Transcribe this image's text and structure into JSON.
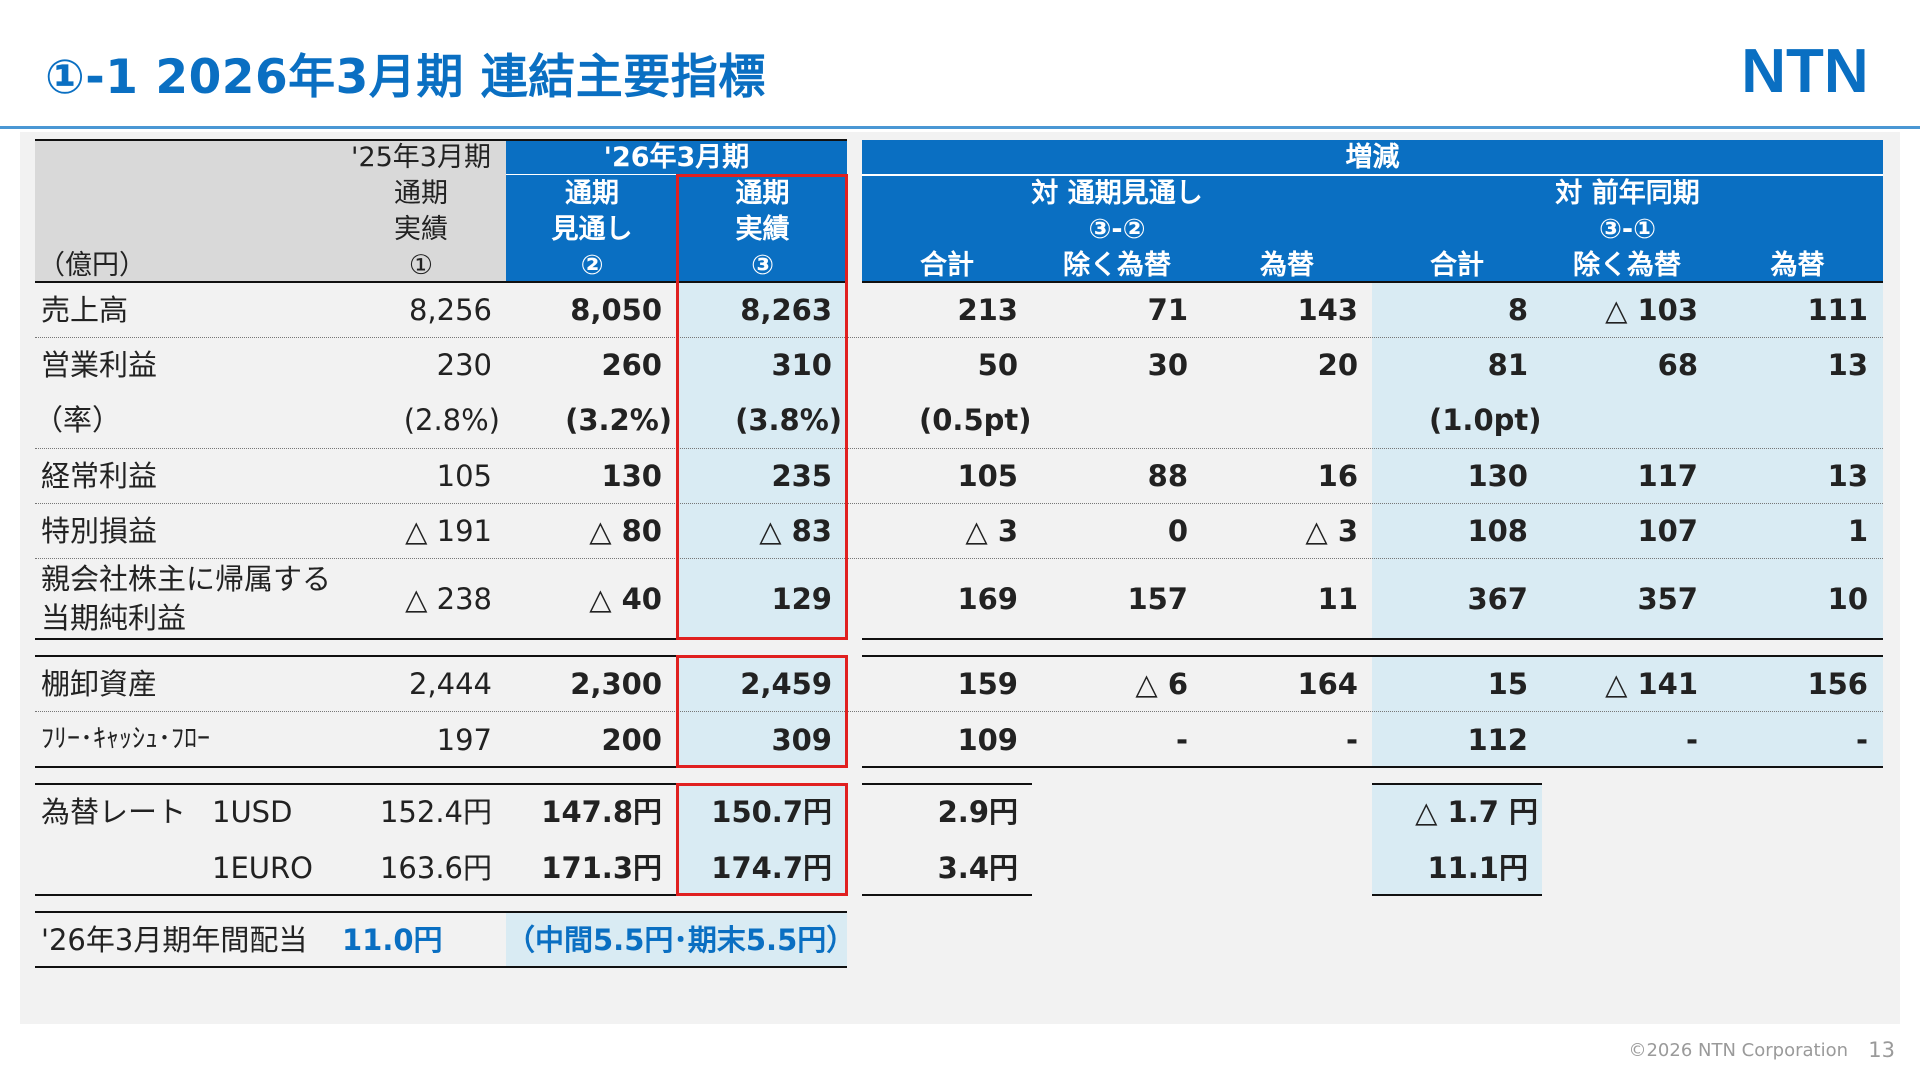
{
  "header": {
    "title": "①-1 2026年3月期 連結主要指標",
    "logo_text": "NTN"
  },
  "footer": {
    "copyright": "©2026 NTN Corporation",
    "page": "13"
  },
  "colors": {
    "brand_blue": "#0a6fc2",
    "header_blue": "#0a6fc2",
    "light_blue": "#d9ebf3",
    "header_gray": "#d9d9d9",
    "highlight_red": "#e02020"
  },
  "table": {
    "unit": "（億円）",
    "col_fy25": {
      "line1": "'25年3月期",
      "line2": "通期",
      "line3": "実績",
      "line4": "①"
    },
    "col_fy26": {
      "group": "'26年3月期",
      "forecast": {
        "line1": "通期",
        "line2": "見通し",
        "line3": "②"
      },
      "actual": {
        "line1": "通期",
        "line2": "実績",
        "line3": "③"
      }
    },
    "change": {
      "group": "増減",
      "vs_forecast": {
        "title": "対 通期見通し",
        "formula": "③-②",
        "total": "合計",
        "ex_fx": "除く為替",
        "fx": "為替"
      },
      "vs_prior": {
        "title": "対 前年同期",
        "formula": "③-①",
        "total": "合計",
        "ex_fx": "除く為替",
        "fx": "為替"
      }
    },
    "rows": [
      {
        "label": "売上高",
        "fy25": "8,256",
        "fcst": "8,050",
        "act": "8,263",
        "vf_total": "213",
        "vf_ex": "71",
        "vf_fx": "143",
        "vp_total": "8",
        "vp_ex": "△ 103",
        "vp_fx": "111"
      },
      {
        "label": "営業利益",
        "fy25": "230",
        "fcst": "260",
        "act": "310",
        "vf_total": "50",
        "vf_ex": "30",
        "vf_fx": "20",
        "vp_total": "81",
        "vp_ex": "68",
        "vp_fx": "13"
      },
      {
        "label": "（率）",
        "fy25": "(2.8%)",
        "fcst": "(3.2%)",
        "act": "(3.8%)",
        "vf_total": "(0.5pt)",
        "vp_total": "(1.0pt)"
      },
      {
        "label": "経常利益",
        "fy25": "105",
        "fcst": "130",
        "act": "235",
        "vf_total": "105",
        "vf_ex": "88",
        "vf_fx": "16",
        "vp_total": "130",
        "vp_ex": "117",
        "vp_fx": "13"
      },
      {
        "label": "特別損益",
        "fy25": "△ 191",
        "fcst": "△ 80",
        "act": "△ 83",
        "vf_total": "△ 3",
        "vf_ex": "0",
        "vf_fx": "△ 3",
        "vp_total": "108",
        "vp_ex": "107",
        "vp_fx": "1"
      },
      {
        "label1": "親会社株主に帰属する",
        "label2": "当期純利益",
        "fy25": "△ 238",
        "fcst": "△ 40",
        "act": "129",
        "vf_total": "169",
        "vf_ex": "157",
        "vf_fx": "11",
        "vp_total": "367",
        "vp_ex": "357",
        "vp_fx": "10"
      },
      {
        "label": "棚卸資産",
        "fy25": "2,444",
        "fcst": "2,300",
        "act": "2,459",
        "vf_total": "159",
        "vf_ex": "△ 6",
        "vf_fx": "164",
        "vp_total": "15",
        "vp_ex": "△ 141",
        "vp_fx": "156"
      },
      {
        "label": "ﾌﾘｰ･ｷｬｯｼｭ･ﾌﾛｰ",
        "fy25": "197",
        "fcst": "200",
        "act": "309",
        "vf_total": "109",
        "vf_ex": "-",
        "vf_fx": "-",
        "vp_total": "112",
        "vp_ex": "-",
        "vp_fx": "-"
      }
    ],
    "fx": {
      "label": "為替レート",
      "usd": {
        "name": "1USD",
        "fy25": "152.4円",
        "fcst": "147.8円",
        "act": "150.7円",
        "vf": "2.9円",
        "vp": "△ 1.7 円"
      },
      "euro": {
        "name": "1EURO",
        "fy25": "163.6円",
        "fcst": "171.3円",
        "act": "174.7円",
        "vf": "3.4円",
        "vp": "11.1円"
      }
    },
    "dividend": {
      "label": "'26年3月期年間配当",
      "value": "11.0円",
      "detail": "（中間5.5円･期末5.5円）"
    }
  }
}
